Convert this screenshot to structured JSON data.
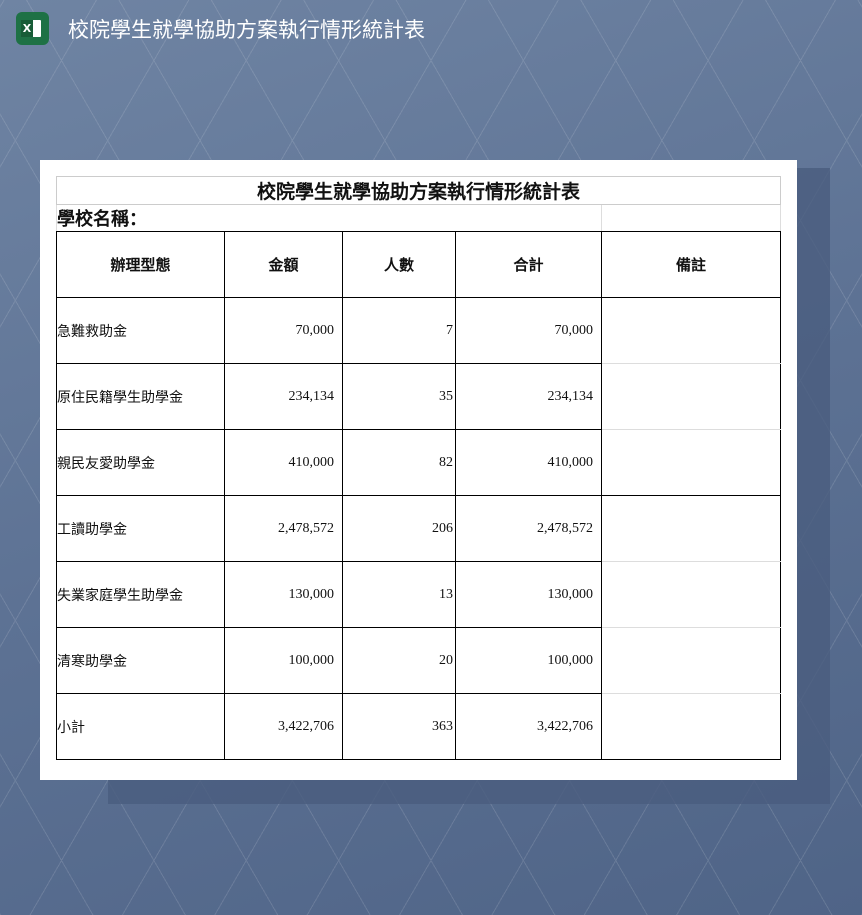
{
  "app": {
    "title": "校院學生就學協助方案執行情形統計表",
    "icon": "excel-icon",
    "icon_letter": "X"
  },
  "sheet": {
    "title": "校院學生就學協助方案執行情形統計表",
    "school_label": "學校名稱：",
    "headers": [
      "辦理型態",
      "金額",
      "人數",
      "合計",
      "備註"
    ],
    "rows": [
      {
        "type": "急難救助金",
        "amount": "70,000",
        "count": "7",
        "total": "70,000",
        "note": ""
      },
      {
        "type": "原住民籍學生助學金",
        "amount": "234,134",
        "count": "35",
        "total": "234,134",
        "note": ""
      },
      {
        "type": "親民友愛助學金",
        "amount": "410,000",
        "count": "82",
        "total": "410,000",
        "note": ""
      },
      {
        "type": "工讀助學金",
        "amount": "2,478,572",
        "count": "206",
        "total": "2,478,572",
        "note": ""
      },
      {
        "type": "失業家庭學生助學金",
        "amount": "130,000",
        "count": "13",
        "total": "130,000",
        "note": ""
      },
      {
        "type": "清寒助學金",
        "amount": "100,000",
        "count": "20",
        "total": "100,000",
        "note": ""
      },
      {
        "type": "小計",
        "amount": "3,422,706",
        "count": "363",
        "total": "3,422,706",
        "note": ""
      }
    ]
  }
}
